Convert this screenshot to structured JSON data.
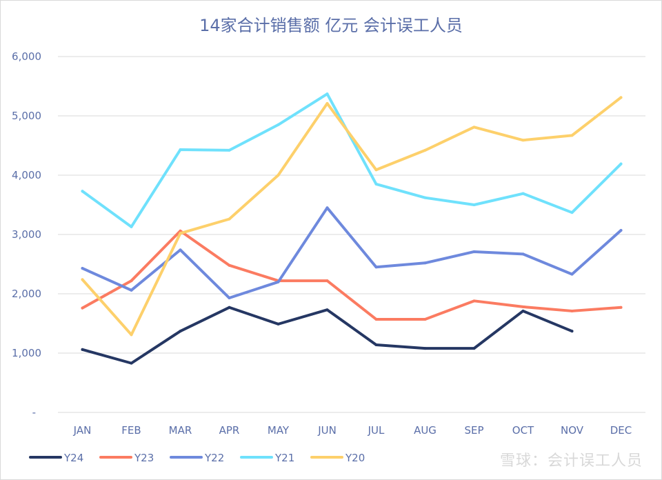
{
  "chart_data": {
    "type": "line",
    "title": "14家合计销售额 亿元 会计误工人员",
    "xlabel": "",
    "ylabel": "",
    "categories": [
      "JAN",
      "FEB",
      "MAR",
      "APR",
      "MAY",
      "JUN",
      "JUL",
      "AUG",
      "SEP",
      "OCT",
      "NOV",
      "DEC"
    ],
    "ylim": [
      0,
      6000
    ],
    "yticks": [
      0,
      1000,
      2000,
      3000,
      4000,
      5000,
      6000
    ],
    "ytick_labels": [
      "-",
      "1,000",
      "2,000",
      "3,000",
      "4,000",
      "5,000",
      "6,000"
    ],
    "grid": true,
    "legend_position": "bottom-left",
    "series": [
      {
        "name": "Y24",
        "color": "#253763",
        "values": [
          1060,
          830,
          1370,
          1770,
          1490,
          1730,
          1140,
          1080,
          1080,
          1710,
          1370,
          null
        ]
      },
      {
        "name": "Y23",
        "color": "#fb7b61",
        "values": [
          1760,
          2220,
          3060,
          2480,
          2220,
          2220,
          1570,
          1570,
          1880,
          1780,
          1710,
          1770
        ]
      },
      {
        "name": "Y22",
        "color": "#6e89dd",
        "values": [
          2430,
          2060,
          2740,
          1930,
          2200,
          3450,
          2450,
          2520,
          2710,
          2670,
          2330,
          3070
        ]
      },
      {
        "name": "Y21",
        "color": "#6fe1fc",
        "values": [
          3730,
          3130,
          4430,
          4420,
          4850,
          5370,
          3850,
          3620,
          3500,
          3690,
          3370,
          4190
        ]
      },
      {
        "name": "Y20",
        "color": "#fdd06b",
        "values": [
          2240,
          1310,
          3020,
          3260,
          4000,
          5210,
          4090,
          4420,
          4810,
          4590,
          4670,
          5310
        ]
      }
    ]
  },
  "watermark": "雪球：会计误工人员"
}
